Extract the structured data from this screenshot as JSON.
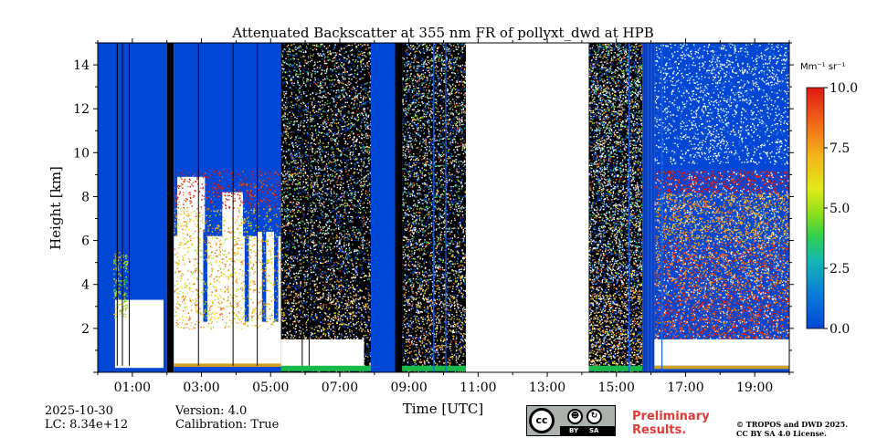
{
  "chart_data": {
    "type": "heatmap",
    "title": "Attenuated Backscatter at 355 nm FR of pollyxt_dwd at HPB",
    "xlabel": "Time [UTC]",
    "ylabel": "Height [km]",
    "x_range_hours": [
      0.0,
      20.0
    ],
    "ylim": [
      0,
      15
    ],
    "x_tick_labels": [
      "01:00",
      "03:00",
      "05:00",
      "07:00",
      "09:00",
      "11:00",
      "13:00",
      "15:00",
      "17:00",
      "19:00"
    ],
    "x_tick_hours": [
      1,
      3,
      5,
      7,
      9,
      11,
      13,
      15,
      17,
      19
    ],
    "y_ticks": [
      2,
      4,
      6,
      8,
      10,
      12,
      14
    ],
    "colorbar": {
      "label": "Mm⁻¹ sr⁻¹",
      "range": [
        0.0,
        10.0
      ],
      "ticks": [
        0.0,
        2.5,
        5.0,
        7.5,
        10.0
      ],
      "tick_labels": [
        "0.0",
        "2.5",
        "5.0",
        "7.5",
        "10.0"
      ]
    },
    "colors": {
      "low": "#0047d6",
      "mid": "#f5e62a",
      "high": "#e01a12",
      "overflow": "#ffffff",
      "no_data": "#ffffff",
      "blocked": "#000000"
    },
    "segments": [
      {
        "start": 0.0,
        "end": 0.45,
        "kind": "clear-blue"
      },
      {
        "start": 0.45,
        "end": 2.0,
        "kind": "low-cloud",
        "cloud_top_km": 3.5
      },
      {
        "start": 2.0,
        "end": 2.2,
        "kind": "black-gap"
      },
      {
        "start": 2.2,
        "end": 5.3,
        "kind": "mid-cloud",
        "cloud_top_km": 9.0
      },
      {
        "start": 5.3,
        "end": 7.9,
        "kind": "noisy",
        "cloud_top_km": 1.5
      },
      {
        "start": 7.9,
        "end": 8.6,
        "kind": "clear-blue"
      },
      {
        "start": 8.6,
        "end": 8.8,
        "kind": "black-gap"
      },
      {
        "start": 8.8,
        "end": 10.65,
        "kind": "noisy-sparse"
      },
      {
        "start": 10.65,
        "end": 14.2,
        "kind": "no-data"
      },
      {
        "start": 14.2,
        "end": 15.75,
        "kind": "noisy"
      },
      {
        "start": 15.75,
        "end": 16.1,
        "kind": "dark-blue"
      },
      {
        "start": 16.1,
        "end": 20.0,
        "kind": "aerosol-layer",
        "layer_top_km": 9.0
      }
    ]
  },
  "footer": {
    "date": "2025-10-30",
    "lc": "LC: 8.34e+12",
    "version": "Version: 4.0",
    "calibration": "Calibration: True",
    "preliminary_line1": "Preliminary",
    "preliminary_line2": "Results.",
    "copyright_line1": "© TROPOS and DWD 2025.",
    "copyright_line2": "CC BY SA 4.0 License.",
    "license_badge": {
      "cc": "cc",
      "by": "BY",
      "sa": "SA"
    }
  }
}
